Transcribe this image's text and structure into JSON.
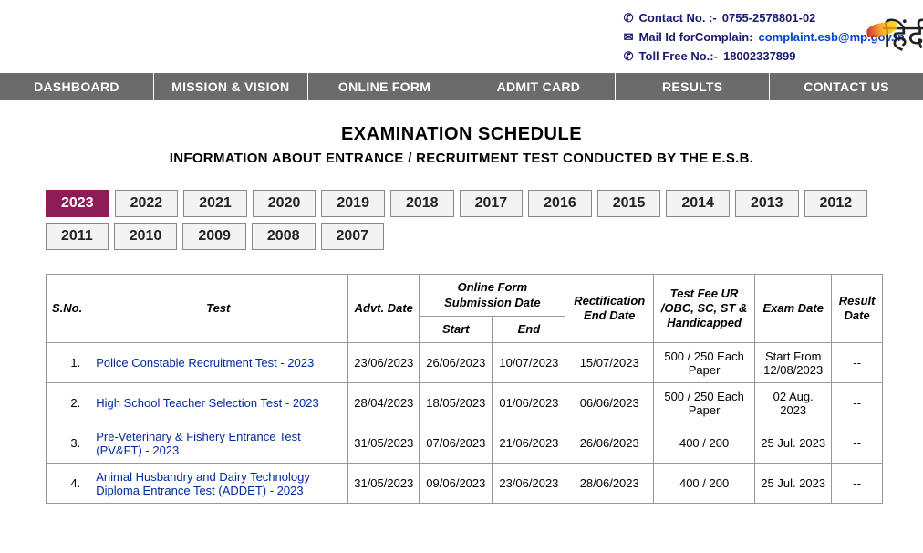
{
  "contact": {
    "phone_label": "Contact No. :-",
    "phone_value": "0755-2578801-02",
    "mail_label": "Mail Id forComplain:",
    "mail_value": "complaint.esb@mp.gov.in",
    "toll_label": "Toll Free No.:-",
    "toll_value": "18002337899"
  },
  "lang_toggle": "हिंदी",
  "nav": [
    "DASHBOARD",
    "MISSION & VISION",
    "ONLINE FORM",
    "ADMIT CARD",
    "RESULTS",
    "CONTACT US"
  ],
  "heading": {
    "title": "EXAMINATION SCHEDULE",
    "sub": "INFORMATION ABOUT ENTRANCE / RECRUITMENT TEST CONDUCTED BY THE E.S.B."
  },
  "years": [
    "2023",
    "2022",
    "2021",
    "2020",
    "2019",
    "2018",
    "2017",
    "2016",
    "2015",
    "2014",
    "2013",
    "2012",
    "2011",
    "2010",
    "2009",
    "2008",
    "2007"
  ],
  "active_year": "2023",
  "table": {
    "headers": {
      "sno": "S.No.",
      "test": "Test",
      "advt": "Advt. Date",
      "form_span": "Online Form Submission Date",
      "start": "Start",
      "end": "End",
      "rect": "Rectification End Date",
      "fee": "Test Fee UR /OBC, SC, ST & Handicapped",
      "exam": "Exam Date",
      "result": "Result Date"
    },
    "rows": [
      {
        "sno": "1.",
        "test": "Police Constable Recruitment Test - 2023",
        "advt": "23/06/2023",
        "start": "26/06/2023",
        "end": "10/07/2023",
        "rect": "15/07/2023",
        "fee": "500 / 250 Each Paper",
        "exam": "Start From 12/08/2023",
        "result": "--"
      },
      {
        "sno": "2.",
        "test": "High School Teacher Selection Test - 2023",
        "advt": "28/04/2023",
        "start": "18/05/2023",
        "end": "01/06/2023",
        "rect": "06/06/2023",
        "fee": "500 / 250 Each Paper",
        "exam": "02 Aug. 2023",
        "result": "--"
      },
      {
        "sno": "3.",
        "test": "Pre-Veterinary & Fishery Entrance Test (PV&FT) - 2023",
        "advt": "31/05/2023",
        "start": "07/06/2023",
        "end": "21/06/2023",
        "rect": "26/06/2023",
        "fee": "400 / 200",
        "exam": "25 Jul. 2023",
        "result": "--"
      },
      {
        "sno": "4.",
        "test": "Animal Husbandry and Dairy Technology Diploma Entrance Test (ADDET) - 2023",
        "advt": "31/05/2023",
        "start": "09/06/2023",
        "end": "23/06/2023",
        "rect": "28/06/2023",
        "fee": "400 / 200",
        "exam": "25 Jul. 2023",
        "result": "--"
      }
    ]
  },
  "colors": {
    "nav_bg": "#6b6b6b",
    "active_tab": "#8c1d56",
    "link": "#002a9e"
  }
}
